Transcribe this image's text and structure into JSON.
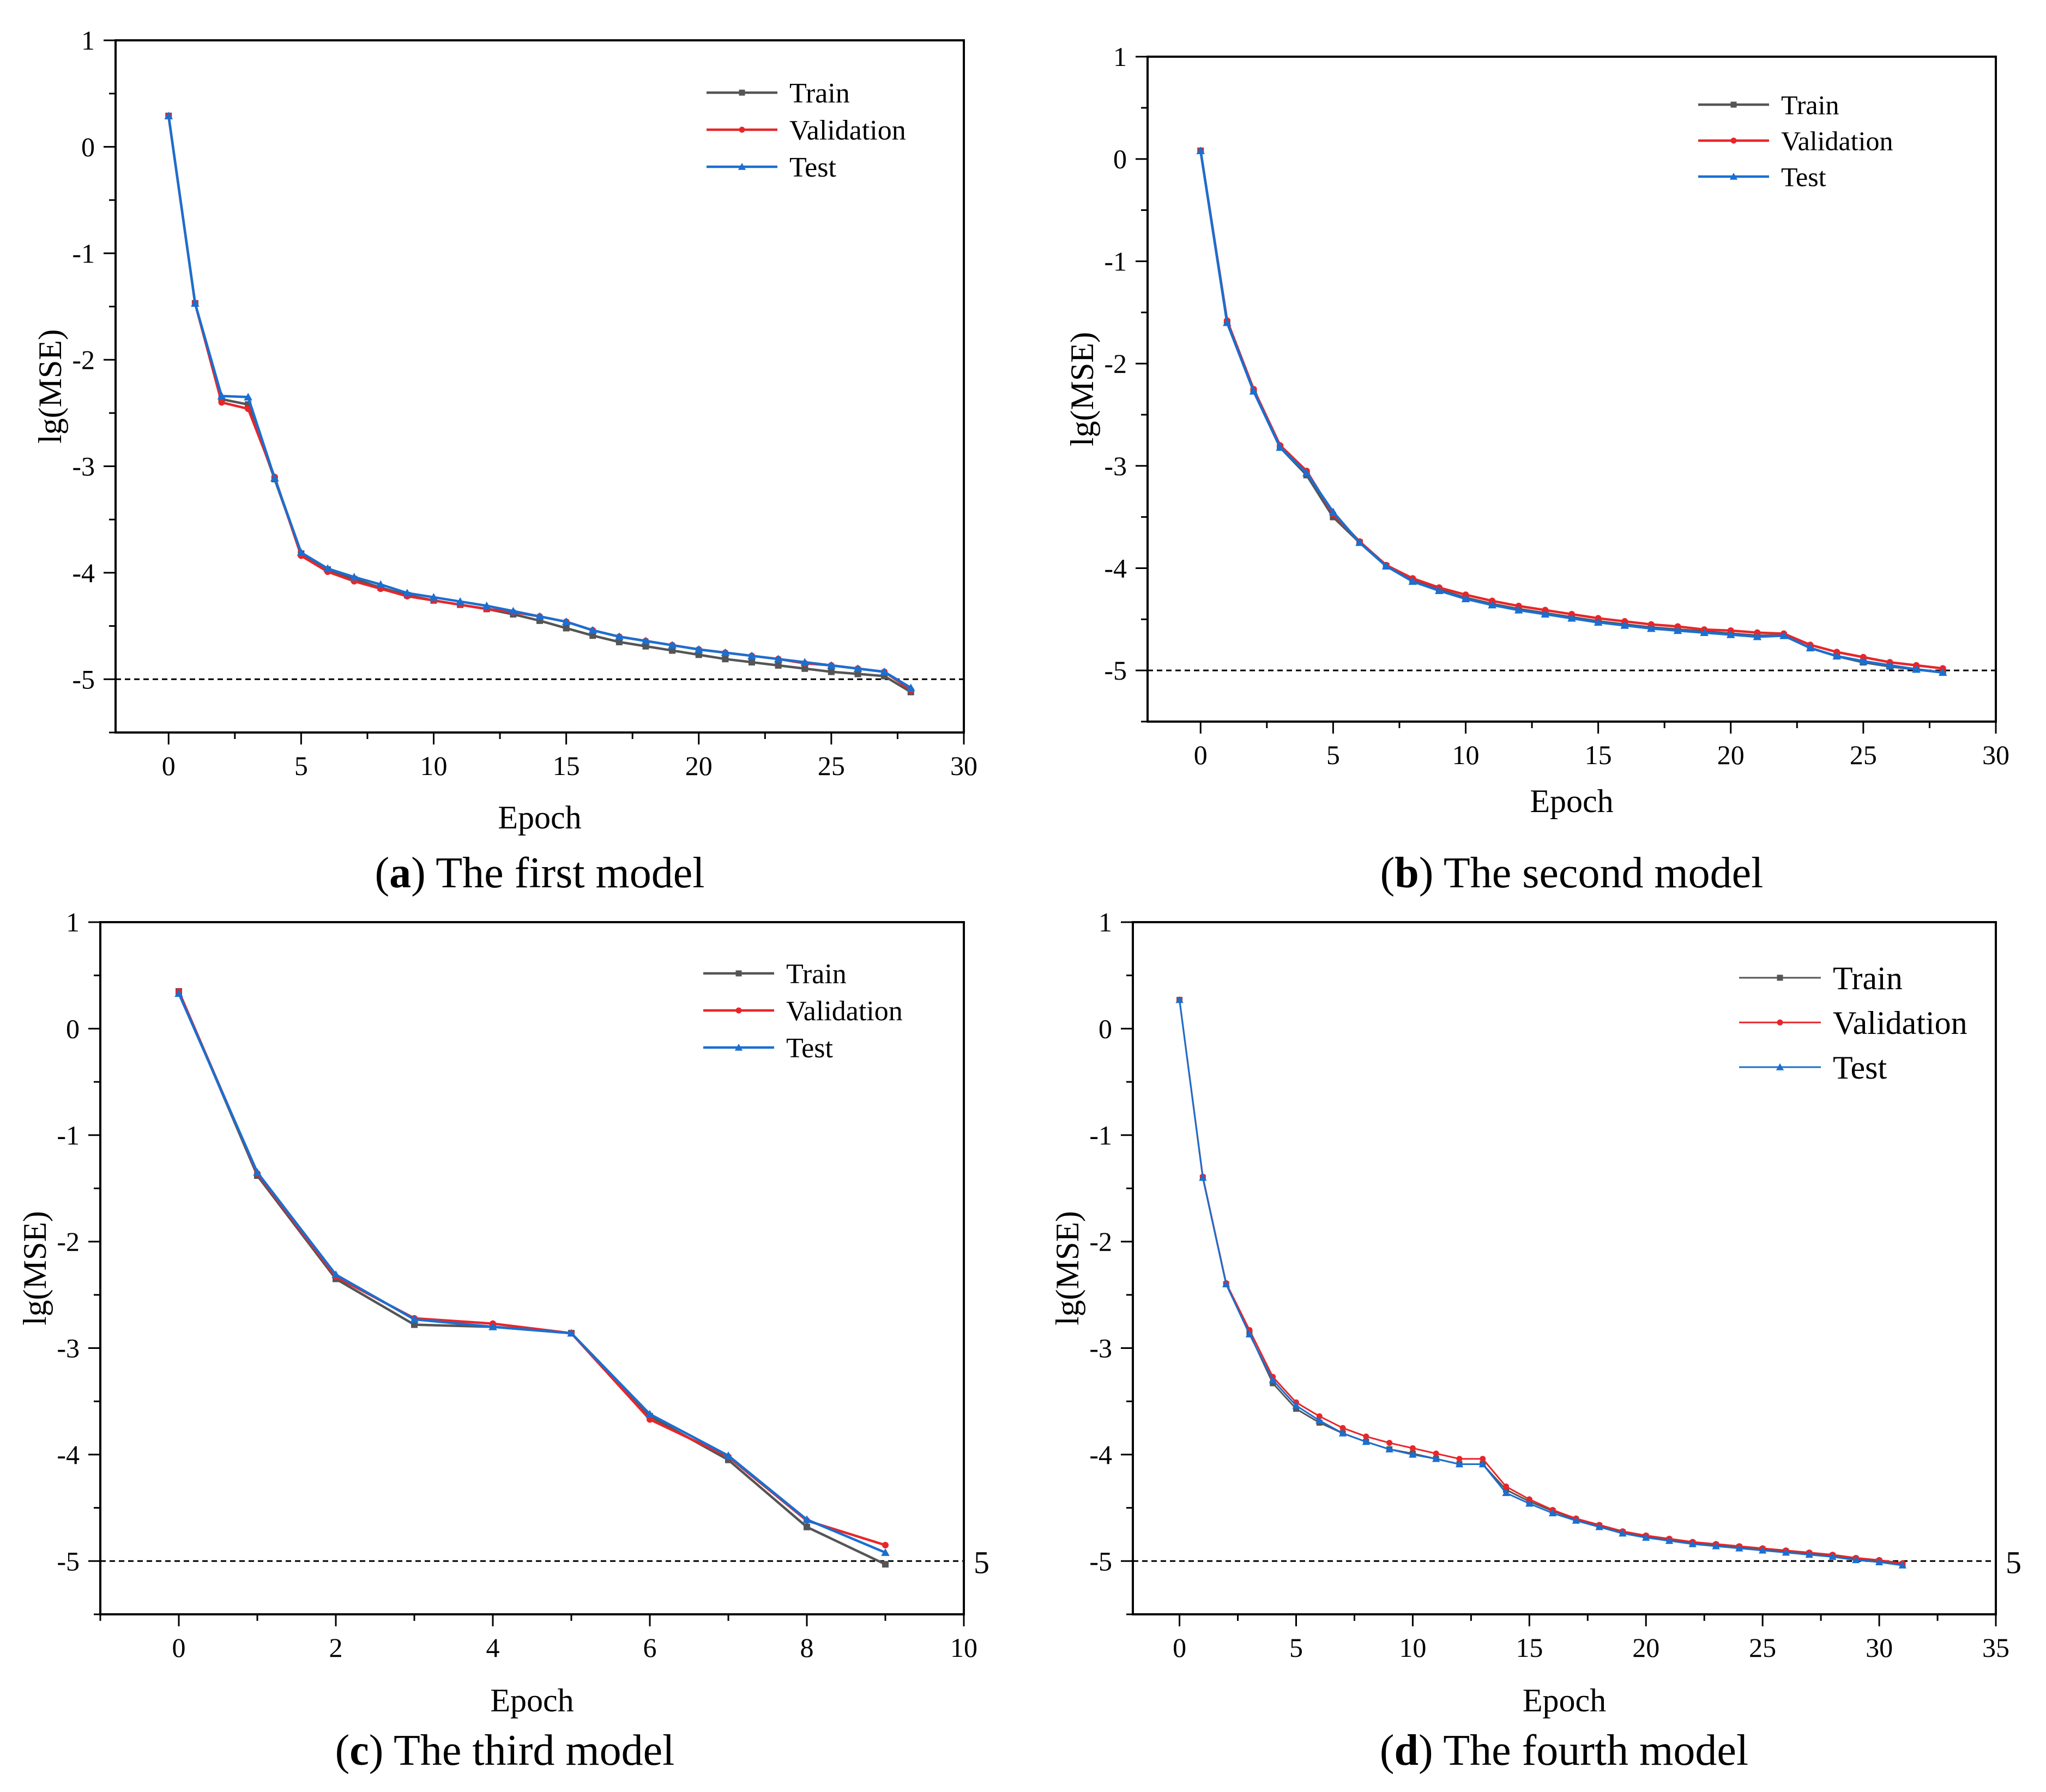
{
  "figure": {
    "panels": [
      {
        "id": "a",
        "caption_letter": "a",
        "caption_text": " The first model",
        "legend_style": "standard"
      },
      {
        "id": "b",
        "caption_letter": "b",
        "caption_text": " The second model",
        "legend_style": "standard"
      },
      {
        "id": "c",
        "caption_letter": "c",
        "caption_text": " The third model",
        "legend_style": "standard",
        "right_tick": "5"
      },
      {
        "id": "d",
        "caption_letter": "d",
        "caption_text": " The fourth model",
        "legend_style": "large",
        "right_tick": "5"
      }
    ]
  },
  "colors": {
    "train": "#555555",
    "validation": "#e8262a",
    "test": "#1a6fd1",
    "axis": "#000000",
    "reference": "#000000"
  },
  "chart_data": [
    {
      "type": "line",
      "title": "(a) The first model",
      "xlabel": "Epoch",
      "ylabel": "lg(MSE)",
      "xlim": [
        -2,
        30
      ],
      "ylim": [
        -5.5,
        1
      ],
      "xticks": [
        0,
        5,
        10,
        15,
        20,
        25,
        30
      ],
      "yticks": [
        1,
        0,
        -1,
        -2,
        -3,
        -4,
        -5
      ],
      "reference_line": -5,
      "legend": [
        "Train",
        "Validation",
        "Test"
      ],
      "series": [
        {
          "name": "Train",
          "values": [
            0.29,
            -1.47,
            -2.37,
            -2.42,
            -3.12,
            -3.82,
            -3.97,
            -4.06,
            -4.14,
            -4.21,
            -4.26,
            -4.3,
            -4.34,
            -4.39,
            -4.45,
            -4.52,
            -4.59,
            -4.65,
            -4.69,
            -4.73,
            -4.77,
            -4.81,
            -4.84,
            -4.87,
            -4.9,
            -4.93,
            -4.95,
            -4.97,
            -5.12
          ]
        },
        {
          "name": "Validation",
          "values": [
            0.29,
            -1.47,
            -2.4,
            -2.46,
            -3.1,
            -3.84,
            -3.99,
            -4.08,
            -4.15,
            -4.22,
            -4.26,
            -4.3,
            -4.34,
            -4.37,
            -4.41,
            -4.46,
            -4.54,
            -4.6,
            -4.64,
            -4.68,
            -4.72,
            -4.75,
            -4.78,
            -4.81,
            -4.85,
            -4.87,
            -4.9,
            -4.93,
            -5.1
          ]
        },
        {
          "name": "Test",
          "values": [
            0.29,
            -1.47,
            -2.34,
            -2.35,
            -3.11,
            -3.81,
            -3.96,
            -4.04,
            -4.11,
            -4.19,
            -4.23,
            -4.27,
            -4.31,
            -4.36,
            -4.41,
            -4.46,
            -4.54,
            -4.6,
            -4.64,
            -4.68,
            -4.72,
            -4.75,
            -4.78,
            -4.81,
            -4.84,
            -4.87,
            -4.9,
            -4.93,
            -5.08
          ]
        }
      ]
    },
    {
      "type": "line",
      "title": "(b) The second model",
      "xlabel": "Epoch",
      "ylabel": "lg(MSE)",
      "xlim": [
        -2,
        30
      ],
      "ylim": [
        -5.5,
        1
      ],
      "xticks": [
        0,
        5,
        10,
        15,
        20,
        25,
        30
      ],
      "yticks": [
        1,
        0,
        -1,
        -2,
        -3,
        -4,
        -5
      ],
      "reference_line": -5,
      "legend": [
        "Train",
        "Validation",
        "Test"
      ],
      "series": [
        {
          "name": "Train",
          "values": [
            0.08,
            -1.6,
            -2.27,
            -2.82,
            -3.09,
            -3.5,
            -3.75,
            -3.98,
            -4.12,
            -4.21,
            -4.29,
            -4.35,
            -4.4,
            -4.44,
            -4.48,
            -4.52,
            -4.55,
            -4.58,
            -4.6,
            -4.62,
            -4.64,
            -4.66,
            -4.66,
            -4.78,
            -4.86,
            -4.92,
            -4.96,
            -4.99,
            -5.02
          ]
        },
        {
          "name": "Validation",
          "values": [
            0.08,
            -1.58,
            -2.25,
            -2.8,
            -3.05,
            -3.47,
            -3.74,
            -3.97,
            -4.1,
            -4.19,
            -4.26,
            -4.32,
            -4.37,
            -4.41,
            -4.45,
            -4.49,
            -4.52,
            -4.55,
            -4.57,
            -4.6,
            -4.61,
            -4.63,
            -4.64,
            -4.75,
            -4.82,
            -4.87,
            -4.92,
            -4.95,
            -4.98
          ]
        },
        {
          "name": "Test",
          "values": [
            0.08,
            -1.6,
            -2.27,
            -2.82,
            -3.07,
            -3.45,
            -3.75,
            -3.98,
            -4.13,
            -4.22,
            -4.3,
            -4.36,
            -4.41,
            -4.45,
            -4.49,
            -4.53,
            -4.56,
            -4.59,
            -4.61,
            -4.63,
            -4.65,
            -4.67,
            -4.66,
            -4.78,
            -4.86,
            -4.91,
            -4.95,
            -4.99,
            -5.02
          ]
        }
      ]
    },
    {
      "type": "line",
      "title": "(c) The third model",
      "xlabel": "Epoch",
      "ylabel": "lg(MSE)",
      "xlim": [
        -1,
        10
      ],
      "ylim": [
        -5.5,
        1
      ],
      "xticks": [
        0,
        2,
        4,
        6,
        8,
        10
      ],
      "yticks": [
        1,
        0,
        -1,
        -2,
        -3,
        -4,
        -5
      ],
      "reference_line": -5,
      "legend": [
        "Train",
        "Validation",
        "Test"
      ],
      "series": [
        {
          "name": "Train",
          "values": [
            0.35,
            -1.38,
            -2.35,
            -2.78,
            -2.8,
            -2.86,
            -3.64,
            -4.05,
            -4.68,
            -5.03
          ]
        },
        {
          "name": "Validation",
          "values": [
            0.35,
            -1.36,
            -2.33,
            -2.72,
            -2.77,
            -2.86,
            -3.67,
            -4.02,
            -4.62,
            -4.85
          ]
        },
        {
          "name": "Test",
          "values": [
            0.33,
            -1.35,
            -2.31,
            -2.73,
            -2.8,
            -2.86,
            -3.62,
            -4.01,
            -4.61,
            -4.92
          ]
        }
      ]
    },
    {
      "type": "line",
      "title": "(d) The fourth model",
      "xlabel": "Epoch",
      "ylabel": "lg(MSE)",
      "xlim": [
        -2,
        35
      ],
      "ylim": [
        -5.5,
        1
      ],
      "xticks": [
        0,
        5,
        10,
        15,
        20,
        25,
        30,
        35
      ],
      "yticks": [
        1,
        0,
        -1,
        -2,
        -3,
        -4,
        -5
      ],
      "reference_line": -5,
      "legend": [
        "Train",
        "Validation",
        "Test"
      ],
      "series": [
        {
          "name": "Train",
          "values": [
            0.27,
            -1.4,
            -2.4,
            -2.86,
            -3.33,
            -3.57,
            -3.7,
            -3.8,
            -3.88,
            -3.95,
            -3.99,
            -4.04,
            -4.09,
            -4.09,
            -4.33,
            -4.44,
            -4.53,
            -4.61,
            -4.67,
            -4.73,
            -4.77,
            -4.8,
            -4.83,
            -4.85,
            -4.87,
            -4.89,
            -4.91,
            -4.93,
            -4.95,
            -4.98,
            -5.0,
            -5.03
          ]
        },
        {
          "name": "Validation",
          "values": [
            0.27,
            -1.39,
            -2.39,
            -2.83,
            -3.27,
            -3.51,
            -3.64,
            -3.75,
            -3.83,
            -3.89,
            -3.94,
            -3.99,
            -4.04,
            -4.04,
            -4.3,
            -4.42,
            -4.52,
            -4.6,
            -4.66,
            -4.72,
            -4.76,
            -4.79,
            -4.82,
            -4.84,
            -4.86,
            -4.88,
            -4.9,
            -4.92,
            -4.94,
            -4.97,
            -4.99,
            -5.02
          ]
        },
        {
          "name": "Test",
          "values": [
            0.27,
            -1.4,
            -2.4,
            -2.87,
            -3.3,
            -3.54,
            -3.68,
            -3.8,
            -3.88,
            -3.95,
            -4.0,
            -4.04,
            -4.09,
            -4.09,
            -4.36,
            -4.46,
            -4.55,
            -4.62,
            -4.68,
            -4.74,
            -4.78,
            -4.81,
            -4.84,
            -4.86,
            -4.88,
            -4.9,
            -4.92,
            -4.94,
            -4.96,
            -4.99,
            -5.01,
            -5.04
          ]
        }
      ]
    }
  ]
}
